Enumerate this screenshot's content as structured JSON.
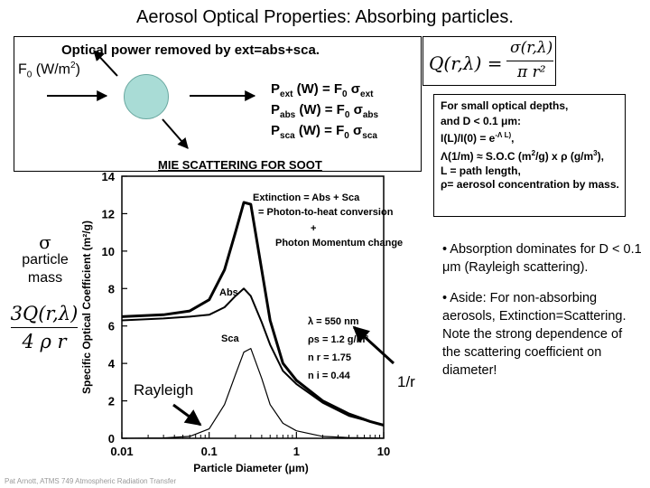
{
  "slide": {
    "title": "Aerosol Optical Properties:  Absorbing particles.",
    "heading": "Optical power removed by ext=abs+sca.",
    "f0_label": {
      "main": "F",
      "sub": "0",
      "rest": " (W/m",
      "sup": "2",
      "end": ")"
    },
    "power_equations": [
      {
        "p": "P",
        "sub": "ext",
        "mid": " (W) = F",
        "sub0": "0",
        "sigma": "σ",
        "ssub": "ext"
      },
      {
        "p": "P",
        "sub": "abs",
        "mid": " (W) = F",
        "sub0": "0",
        "sigma": "σ",
        "ssub": "abs"
      },
      {
        "p": "P",
        "sub": "sca",
        "mid": " (W) = F",
        "sub0": "0",
        "sigma": "σ",
        "ssub": "sca"
      }
    ],
    "q_formula": {
      "lhs": "Q(r,λ) =",
      "num": "σ(r,λ)",
      "den": "π r²"
    },
    "notes_box": {
      "line1": "For small optical depths,",
      "line2": "and D < 0.1 μm:",
      "line3": "I(L)/I(0) = e",
      "line3_sup": "-Λ L)",
      "line3_end": ",",
      "line4": "Λ(1/m) ≈ S.O.C (m",
      "line4_sup": "2",
      "line4_mid": "/g) x ρ (g/m",
      "line4_sup2": "3",
      "line4_end": "),",
      "line5": "L = path length,",
      "line6": "ρ= aerosol concentration by mass."
    },
    "bullets": [
      "• Absorption dominates for D < 0.1 μm (Rayleigh scattering).",
      "• Aside: For non-absorbing aerosols, Extinction=Scattering. Note the strong dependence of the scattering coefficient on diameter!"
    ],
    "sigma_label": {
      "symbol": "σ",
      "line1": "particle",
      "line2": "mass"
    },
    "mass_formula": {
      "num": "3Q(r,λ)",
      "den": "4 ρ r"
    },
    "annotations": {
      "rayleigh": "Rayleigh",
      "one_over_r": "1/r"
    },
    "footer": "Pat Arnott, ATMS 749 Atmospheric Radiation Transfer"
  },
  "chart_data": {
    "type": "line",
    "title": "MIE SCATTERING FOR SOOT",
    "xlabel": "Particle Diameter (μm)",
    "ylabel": "Specific Optical Coefficient (m²/g)",
    "x_scale": "log",
    "xlim": [
      0.01,
      10
    ],
    "ylim": [
      0,
      14
    ],
    "x_ticks": [
      "0.01",
      "0.1",
      "1",
      "10"
    ],
    "y_ticks": [
      "0",
      "2",
      "4",
      "6",
      "8",
      "10",
      "12",
      "14"
    ],
    "annotations": [
      "Extinction = Abs + Sca",
      "= Photon-to-heat conversion",
      "+",
      "Photon Momentum change",
      "Abs",
      "Sca",
      "λ = 550 nm",
      "ρs = 1.2 g/m³",
      "n r = 1.75",
      "n i = 0.44"
    ],
    "series": [
      {
        "name": "Extinction",
        "x": [
          0.01,
          0.03,
          0.06,
          0.1,
          0.15,
          0.2,
          0.25,
          0.3,
          0.4,
          0.5,
          0.7,
          1,
          2,
          4,
          7,
          10
        ],
        "y": [
          6.5,
          6.6,
          6.8,
          7.4,
          9.0,
          11.0,
          12.6,
          12.5,
          9.0,
          6.3,
          4.0,
          3.1,
          2.0,
          1.3,
          0.9,
          0.7
        ]
      },
      {
        "name": "Abs",
        "x": [
          0.01,
          0.03,
          0.06,
          0.1,
          0.15,
          0.2,
          0.25,
          0.3,
          0.4,
          0.5,
          0.7,
          1,
          2,
          4,
          7,
          10
        ],
        "y": [
          6.3,
          6.4,
          6.5,
          6.6,
          7.0,
          7.6,
          8.0,
          7.6,
          6.2,
          5.0,
          3.6,
          2.9,
          1.9,
          1.2,
          0.9,
          0.7
        ]
      },
      {
        "name": "Sca",
        "x": [
          0.01,
          0.03,
          0.06,
          0.1,
          0.15,
          0.2,
          0.25,
          0.3,
          0.4,
          0.5,
          0.7,
          1,
          2,
          4,
          7,
          10
        ],
        "y": [
          0.0,
          0.02,
          0.1,
          0.5,
          1.8,
          3.4,
          4.6,
          4.8,
          3.2,
          1.8,
          0.8,
          0.4,
          0.1,
          0.04,
          0.02,
          0.01
        ]
      }
    ]
  }
}
